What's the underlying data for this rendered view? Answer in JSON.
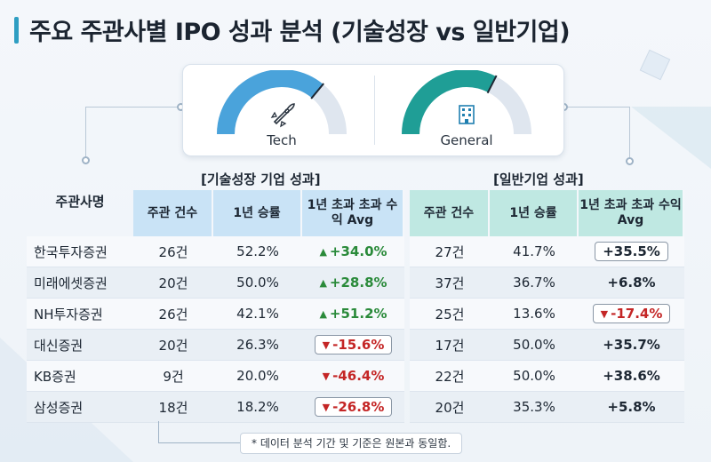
{
  "title": "주요 주관사별 IPO 성과 분석 (기술성장 vs 일반기업)",
  "gauges": [
    {
      "label": "Tech",
      "icon": "rocket-icon",
      "fill": 0.72,
      "color": "#4aa3db"
    },
    {
      "label": "General",
      "icon": "building-icon",
      "fill": 0.65,
      "color": "#1f9e96"
    }
  ],
  "sections": {
    "tech": "[기술성장 기업 성과]",
    "general": "[일반기업 성과]"
  },
  "table": {
    "row_header": "주관사명",
    "tech_headers": [
      "주관 건수",
      "1년 승률",
      "1년 초과 초과 수익 Avg"
    ],
    "general_headers": [
      "주관 건수",
      "1년 승률",
      "1년 초과 초과 수익 Avg"
    ],
    "rows": [
      {
        "name": "한국투자증권",
        "t_count": "26건",
        "t_win": "52.2%",
        "t_excess": "+34.0%",
        "t_dir": "up",
        "t_box": false,
        "g_count": "27건",
        "g_win": "41.7%",
        "g_excess": "+35.5%",
        "g_dir": "none",
        "g_box": true
      },
      {
        "name": "미래에셋증권",
        "t_count": "20건",
        "t_win": "50.0%",
        "t_excess": "+28.8%",
        "t_dir": "up",
        "t_box": false,
        "g_count": "37건",
        "g_win": "36.7%",
        "g_excess": "+6.8%",
        "g_dir": "none",
        "g_box": false
      },
      {
        "name": "NH투자증권",
        "t_count": "26건",
        "t_win": "42.1%",
        "t_excess": "+51.2%",
        "t_dir": "up",
        "t_box": false,
        "g_count": "25건",
        "g_win": "13.6%",
        "g_excess": "-17.4%",
        "g_dir": "down",
        "g_box": true
      },
      {
        "name": "대신증권",
        "t_count": "20건",
        "t_win": "26.3%",
        "t_excess": "-15.6%",
        "t_dir": "down",
        "t_box": true,
        "g_count": "17건",
        "g_win": "50.0%",
        "g_excess": "+35.7%",
        "g_dir": "none",
        "g_box": false
      },
      {
        "name": "KB증권",
        "t_count": "9건",
        "t_win": "20.0%",
        "t_excess": "-46.4%",
        "t_dir": "down",
        "t_box": false,
        "g_count": "22건",
        "g_win": "50.0%",
        "g_excess": "+38.6%",
        "g_dir": "none",
        "g_box": false
      },
      {
        "name": "삼성증권",
        "t_count": "18건",
        "t_win": "18.2%",
        "t_excess": "-26.8%",
        "t_dir": "down",
        "t_box": true,
        "g_count": "20건",
        "g_win": "35.3%",
        "g_excess": "+5.8%",
        "g_dir": "none",
        "g_box": false
      }
    ]
  },
  "footnote": "* 데이터 분석 기간 및 기준은 원본과 동일함.",
  "chart_data": {
    "type": "table",
    "title": "주요 주관사별 IPO 성과 분석 (기술성장 vs 일반기업)",
    "columns": [
      "주관사명",
      "기술성장 주관 건수",
      "기술성장 1년 승률",
      "기술성장 1년 초과 수익 Avg",
      "일반 주관 건수",
      "일반 1년 승률",
      "일반 1년 초과 수익 Avg"
    ],
    "rows": [
      [
        "한국투자증권",
        26,
        52.2,
        34.0,
        27,
        41.7,
        35.5
      ],
      [
        "미래에셋증권",
        20,
        50.0,
        28.8,
        37,
        36.7,
        6.8
      ],
      [
        "NH투자증권",
        26,
        42.1,
        51.2,
        25,
        13.6,
        -17.4
      ],
      [
        "대신증권",
        20,
        26.3,
        -15.6,
        17,
        50.0,
        35.7
      ],
      [
        "KB증권",
        9,
        20.0,
        -46.4,
        22,
        50.0,
        38.6
      ],
      [
        "삼성증권",
        18,
        18.2,
        -26.8,
        20,
        35.3,
        5.8
      ]
    ]
  }
}
